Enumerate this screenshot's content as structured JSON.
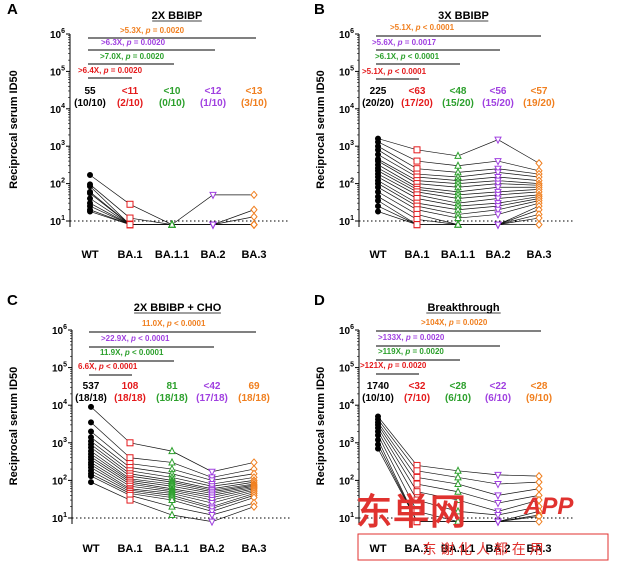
{
  "chart_data": [
    {
      "type": "scatter",
      "panel": "A",
      "title": "2X BBIBP",
      "ylabel": "Reciprocal serum ID50",
      "yscale": "log",
      "ylim": [
        10,
        1000000
      ],
      "yticks": [
        {
          "base": "10",
          "exp": "1",
          "value": 10
        },
        {
          "base": "10",
          "exp": "2",
          "value": 100
        },
        {
          "base": "10",
          "exp": "3",
          "value": 1000
        },
        {
          "base": "10",
          "exp": "4",
          "value": 10000
        },
        {
          "base": "10",
          "exp": "5",
          "value": 100000
        },
        {
          "base": "10",
          "exp": "6",
          "value": 1000000
        }
      ],
      "categories": [
        "WT",
        "BA.1",
        "BA.1.1",
        "BA.2",
        "BA.3"
      ],
      "threshold": 10,
      "series": [
        {
          "name": "WT",
          "color": "#000000",
          "marker": "circle",
          "gmt": "55",
          "responders": "(10/10)",
          "values": [
            170,
            95,
            85,
            60,
            55,
            40,
            30,
            25,
            20,
            18
          ]
        },
        {
          "name": "BA.1",
          "color": "#e41a1c",
          "marker": "square",
          "gmt": "<11",
          "responders": "(2/10)",
          "values": [
            28,
            12,
            8,
            8,
            8,
            8,
            8,
            8,
            8,
            8
          ]
        },
        {
          "name": "BA.1.1",
          "color": "#2ca02c",
          "marker": "triangle-up",
          "gmt": "<10",
          "responders": "(0/10)",
          "values": [
            8,
            8,
            8,
            8,
            8,
            8,
            8,
            8,
            8,
            8
          ]
        },
        {
          "name": "BA.2",
          "color": "#a040e0",
          "marker": "triangle-down",
          "gmt": "<12",
          "responders": "(1/10)",
          "values": [
            50,
            8,
            8,
            8,
            8,
            8,
            8,
            8,
            8,
            8
          ]
        },
        {
          "name": "BA.3",
          "color": "#f07f1f",
          "marker": "diamond",
          "gmt": "<13",
          "responders": "(3/10)",
          "values": [
            50,
            20,
            13,
            8,
            8,
            8,
            8,
            8,
            8,
            8
          ]
        }
      ],
      "comparisons": [
        {
          "label": ">5.3X, p = 0.0020",
          "fold": ">5.3X",
          "p_prefix": "p",
          "p_rest": " = 0.0020",
          "to": "BA.3",
          "color": "#f07f1f"
        },
        {
          "label": ">6.3X, p = 0.0020",
          "fold": ">6.3X",
          "p_prefix": "p",
          "p_rest": " = 0.0020",
          "to": "BA.2",
          "color": "#a040e0"
        },
        {
          "label": ">7.0X, p = 0.0020",
          "fold": ">7.0X",
          "p_prefix": "p",
          "p_rest": " = 0.0020",
          "to": "BA.1.1",
          "color": "#2ca02c"
        },
        {
          "label": ">6.4X, p = 0.0020",
          "fold": ">6.4X",
          "p_prefix": "p",
          "p_rest": " = 0.0020",
          "to": "BA.1",
          "color": "#e41a1c"
        }
      ]
    },
    {
      "type": "scatter",
      "panel": "B",
      "title": "3X BBIBP",
      "ylabel": "Reciprocal serum ID50",
      "yscale": "log",
      "ylim": [
        10,
        1000000
      ],
      "yticks": [
        {
          "base": "10",
          "exp": "1",
          "value": 10
        },
        {
          "base": "10",
          "exp": "2",
          "value": 100
        },
        {
          "base": "10",
          "exp": "3",
          "value": 1000
        },
        {
          "base": "10",
          "exp": "4",
          "value": 10000
        },
        {
          "base": "10",
          "exp": "5",
          "value": 100000
        },
        {
          "base": "10",
          "exp": "6",
          "value": 1000000
        }
      ],
      "categories": [
        "WT",
        "BA.1",
        "BA.1.1",
        "BA.2",
        "BA.3"
      ],
      "threshold": 10,
      "series": [
        {
          "name": "WT",
          "color": "#000000",
          "marker": "circle",
          "gmt": "225",
          "responders": "(20/20)",
          "values": [
            1600,
            1300,
            1000,
            800,
            600,
            450,
            400,
            320,
            260,
            220,
            180,
            150,
            120,
            100,
            80,
            60,
            45,
            35,
            25,
            18
          ]
        },
        {
          "name": "BA.1",
          "color": "#e41a1c",
          "marker": "square",
          "gmt": "<63",
          "responders": "(17/20)",
          "values": [
            800,
            400,
            250,
            180,
            150,
            120,
            100,
            80,
            70,
            60,
            50,
            40,
            30,
            25,
            20,
            15,
            11,
            8,
            8,
            8
          ]
        },
        {
          "name": "BA.1.1",
          "color": "#2ca02c",
          "marker": "triangle-up",
          "gmt": "<48",
          "responders": "(15/20)",
          "values": [
            550,
            300,
            200,
            150,
            120,
            100,
            80,
            60,
            50,
            40,
            30,
            25,
            20,
            15,
            12,
            8,
            8,
            8,
            8,
            8
          ]
        },
        {
          "name": "BA.2",
          "color": "#a040e0",
          "marker": "triangle-down",
          "gmt": "<56",
          "responders": "(15/20)",
          "values": [
            1500,
            400,
            250,
            200,
            150,
            120,
            100,
            80,
            60,
            50,
            40,
            30,
            25,
            20,
            15,
            8,
            8,
            8,
            8,
            8
          ]
        },
        {
          "name": "BA.3",
          "color": "#f07f1f",
          "marker": "diamond",
          "gmt": "<57",
          "responders": "(19/20)",
          "values": [
            350,
            220,
            180,
            150,
            120,
            100,
            90,
            80,
            70,
            60,
            50,
            45,
            40,
            35,
            30,
            25,
            20,
            15,
            12,
            8
          ]
        }
      ],
      "comparisons": [
        {
          "label": ">5.1X, p < 0.0001",
          "fold": ">5.1X",
          "p_prefix": "p",
          "p_rest": " < 0.0001",
          "to": "BA.3",
          "color": "#f07f1f"
        },
        {
          "label": ">5.6X, p = 0.0017",
          "fold": ">5.6X",
          "p_prefix": "p",
          "p_rest": " = 0.0017",
          "to": "BA.2",
          "color": "#a040e0"
        },
        {
          "label": ">6.1X, p < 0.0001",
          "fold": ">6.1X",
          "p_prefix": "p",
          "p_rest": " < 0.0001",
          "to": "BA.1.1",
          "color": "#2ca02c"
        },
        {
          "label": ">5.1X, p < 0.0001",
          "fold": ">5.1X",
          "p_prefix": "p",
          "p_rest": " < 0.0001",
          "to": "BA.1",
          "color": "#e41a1c"
        }
      ]
    },
    {
      "type": "scatter",
      "panel": "C",
      "title": "2X BBIBP + CHO",
      "ylabel": "Reciprocal serum ID50",
      "yscale": "log",
      "ylim": [
        10,
        1000000
      ],
      "yticks": [
        {
          "base": "10",
          "exp": "1",
          "value": 10
        },
        {
          "base": "10",
          "exp": "2",
          "value": 100
        },
        {
          "base": "10",
          "exp": "3",
          "value": 1000
        },
        {
          "base": "10",
          "exp": "4",
          "value": 10000
        },
        {
          "base": "10",
          "exp": "5",
          "value": 100000
        },
        {
          "base": "10",
          "exp": "6",
          "value": 1000000
        }
      ],
      "categories": [
        "WT",
        "BA.1",
        "BA.1.1",
        "BA.2",
        "BA.3"
      ],
      "threshold": 10,
      "series": [
        {
          "name": "WT",
          "color": "#000000",
          "marker": "circle",
          "gmt": "537",
          "responders": "(18/18)",
          "values": [
            9000,
            3500,
            2000,
            1400,
            1100,
            900,
            750,
            600,
            500,
            420,
            360,
            300,
            260,
            220,
            180,
            150,
            130,
            90
          ]
        },
        {
          "name": "BA.1",
          "color": "#e41a1c",
          "marker": "square",
          "gmt": "108",
          "responders": "(18/18)",
          "values": [
            1000,
            400,
            280,
            220,
            180,
            150,
            130,
            110,
            100,
            90,
            80,
            70,
            60,
            55,
            50,
            45,
            40,
            30
          ]
        },
        {
          "name": "BA.1.1",
          "color": "#2ca02c",
          "marker": "triangle-up",
          "gmt": "81",
          "responders": "(18/18)",
          "values": [
            600,
            300,
            200,
            150,
            120,
            100,
            90,
            80,
            70,
            60,
            55,
            50,
            45,
            40,
            35,
            30,
            20,
            12
          ]
        },
        {
          "name": "BA.2",
          "color": "#a040e0",
          "marker": "triangle-down",
          "gmt": "<42",
          "responders": "(17/18)",
          "values": [
            170,
            120,
            100,
            80,
            70,
            60,
            55,
            50,
            45,
            40,
            35,
            30,
            25,
            20,
            18,
            15,
            12,
            8
          ]
        },
        {
          "name": "BA.3",
          "color": "#f07f1f",
          "marker": "diamond",
          "gmt": "69",
          "responders": "(18/18)",
          "values": [
            300,
            200,
            150,
            120,
            100,
            90,
            80,
            75,
            70,
            65,
            60,
            55,
            50,
            45,
            40,
            35,
            25,
            20
          ]
        }
      ],
      "comparisons": [
        {
          "label": "11.0X, p < 0.0001",
          "fold": "11.0X",
          "p_prefix": "p",
          "p_rest": " < 0.0001",
          "to": "BA.3",
          "color": "#f07f1f"
        },
        {
          "label": ">22.9X, p < 0.0001",
          "fold": ">22.9X",
          "p_prefix": "p",
          "p_rest": " < 0.0001",
          "to": "BA.2",
          "color": "#a040e0"
        },
        {
          "label": "11.9X, p < 0.0001",
          "fold": "11.9X",
          "p_prefix": "p",
          "p_rest": " < 0.0001",
          "to": "BA.1.1",
          "color": "#2ca02c"
        },
        {
          "label": "6.6X, p < 0.0001",
          "fold": "6.6X",
          "p_prefix": "p",
          "p_rest": " < 0.0001",
          "to": "BA.1",
          "color": "#e41a1c"
        }
      ]
    },
    {
      "type": "scatter",
      "panel": "D",
      "title": "Breakthrough",
      "ylabel": "Reciprocal serum ID50",
      "yscale": "log",
      "ylim": [
        10,
        1000000
      ],
      "yticks": [
        {
          "base": "10",
          "exp": "1",
          "value": 10
        },
        {
          "base": "10",
          "exp": "2",
          "value": 100
        },
        {
          "base": "10",
          "exp": "3",
          "value": 1000
        },
        {
          "base": "10",
          "exp": "4",
          "value": 10000
        },
        {
          "base": "10",
          "exp": "5",
          "value": 100000
        },
        {
          "base": "10",
          "exp": "6",
          "value": 1000000
        }
      ],
      "categories": [
        "WT",
        "BA.1",
        "BA.1.1",
        "BA.2",
        "BA.3"
      ],
      "threshold": 10,
      "series": [
        {
          "name": "WT",
          "color": "#000000",
          "marker": "circle",
          "gmt": "1740",
          "responders": "(10/10)",
          "values": [
            5000,
            4200,
            3500,
            3000,
            2500,
            2000,
            1600,
            1200,
            900,
            700
          ]
        },
        {
          "name": "BA.1",
          "color": "#e41a1c",
          "marker": "square",
          "gmt": "<32",
          "responders": "(7/10)",
          "values": [
            250,
            180,
            120,
            80,
            50,
            30,
            15,
            8,
            8,
            8
          ]
        },
        {
          "name": "BA.1.1",
          "color": "#2ca02c",
          "marker": "triangle-up",
          "gmt": "<28",
          "responders": "(6/10)",
          "values": [
            180,
            120,
            80,
            50,
            30,
            15,
            8,
            8,
            8,
            8
          ]
        },
        {
          "name": "BA.2",
          "color": "#a040e0",
          "marker": "triangle-down",
          "gmt": "<22",
          "responders": "(6/10)",
          "values": [
            140,
            80,
            40,
            25,
            15,
            12,
            8,
            8,
            8,
            8
          ]
        },
        {
          "name": "BA.3",
          "color": "#f07f1f",
          "marker": "diamond",
          "gmt": "<28",
          "responders": "(9/10)",
          "values": [
            130,
            90,
            60,
            40,
            30,
            20,
            15,
            12,
            11,
            8
          ]
        }
      ],
      "comparisons": [
        {
          "label": ">104X, p = 0.0020",
          "fold": ">104X",
          "p_prefix": "p",
          "p_rest": " = 0.0020",
          "to": "BA.3",
          "color": "#f07f1f"
        },
        {
          "label": ">133X, p = 0.0020",
          "fold": ">133X",
          "p_prefix": "p",
          "p_rest": " = 0.0020",
          "to": "BA.2",
          "color": "#a040e0"
        },
        {
          "label": ">119X, p = 0.0020",
          "fold": ">119X",
          "p_prefix": "p",
          "p_rest": " = 0.0020",
          "to": "BA.1.1",
          "color": "#2ca02c"
        },
        {
          "label": ">121X, p = 0.0020",
          "fold": ">121X",
          "p_prefix": "p",
          "p_rest": " = 0.0020",
          "to": "BA.1",
          "color": "#e41a1c"
        }
      ]
    }
  ],
  "watermark": {
    "logo_text": "东単网",
    "app_text": "APP",
    "tagline": "东 谢 化 人 都 在 用",
    "color": "#e0322f"
  }
}
